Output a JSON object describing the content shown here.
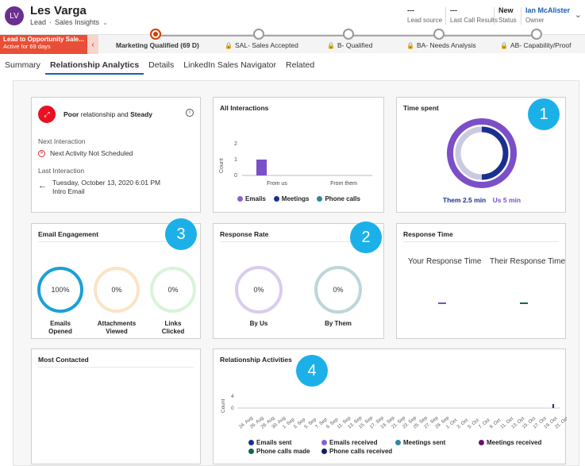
{
  "header": {
    "avatar_initials": "LV",
    "record_name": "Les Varga",
    "record_type": "Lead",
    "form_name": "Sales Insights",
    "fields": [
      {
        "value": "---",
        "label": "Lead source"
      },
      {
        "value": "---",
        "label": "Last Call Results"
      },
      {
        "value": "New",
        "label": "Status"
      },
      {
        "value": "Ian McAlister",
        "label": "Owner"
      }
    ]
  },
  "process": {
    "active_title": "Lead to Opportunity Sale...",
    "active_sub": "Active for 69 days",
    "stages": [
      {
        "label": "Marketing Qualified  (69 D)",
        "current": true
      },
      {
        "label": "SAL- Sales Accepted",
        "current": false
      },
      {
        "label": "B- Qualified",
        "current": false
      },
      {
        "label": "BA- Needs Analysis",
        "current": false
      },
      {
        "label": "AB- Capability/Proof",
        "current": false
      }
    ]
  },
  "tabs": [
    "Summary",
    "Relationship Analytics",
    "Details",
    "LinkedIn Sales Navigator",
    "Related"
  ],
  "active_tab": "Relationship Analytics",
  "health": {
    "prefix": "Poor",
    "middle": " relationship and ",
    "suffix": "Steady",
    "next_label": "Next Interaction",
    "next_value": "Next Activity Not Scheduled",
    "last_label": "Last Interaction",
    "last_date": "Tuesday, October 13, 2020 6:01 PM",
    "last_subject": "Intro Email"
  },
  "all_interactions": {
    "title": "All Interactions",
    "ylabel": "Count",
    "yticks": [
      "2",
      "1",
      "0"
    ],
    "categories": [
      "From us",
      "From them"
    ],
    "legend": [
      "Emails",
      "Meetings",
      "Phone calls"
    ]
  },
  "time_spent": {
    "title": "Time spent",
    "them": "Them 2.5 min",
    "us": "Us 5 min",
    "values": {
      "them_min": 2.5,
      "us_min": 5
    }
  },
  "email_engagement": {
    "title": "Email Engagement",
    "rings": [
      {
        "value": "100%",
        "caption": "Emails Opened",
        "color": "#1aa0d8"
      },
      {
        "value": "0%",
        "caption": "Attachments Viewed",
        "color": "#fbe3c4"
      },
      {
        "value": "0%",
        "caption": "Links Clicked",
        "color": "#d9f3d9"
      }
    ]
  },
  "response_rate": {
    "title": "Response Rate",
    "rings": [
      {
        "value": "0%",
        "caption": "By Us",
        "color": "#d9ccee"
      },
      {
        "value": "0%",
        "caption": "By Them",
        "color": "#bcd6d9"
      }
    ]
  },
  "response_time": {
    "title": "Response Time",
    "yours": "Your Response Time",
    "theirs": "Their Response Time"
  },
  "most_contacted": {
    "title": "Most Contacted"
  },
  "activities": {
    "title": "Relationship Activities",
    "ylabel": "Count",
    "yticks": [
      "4",
      "0"
    ],
    "dates": [
      "24. Aug",
      "26. Aug",
      "28. Aug",
      "30. Aug",
      "1. Sep",
      "3. Sep",
      "5. Sep",
      "7. Sep",
      "9. Sep",
      "11. Sep",
      "13. Sep",
      "15. Sep",
      "17. Sep",
      "19. Sep",
      "21. Sep",
      "23. Sep",
      "25. Sep",
      "27. Sep",
      "29. Sep",
      "1. Oct",
      "3. Oct",
      "5. Oct",
      "7. Oct",
      "9. Oct",
      "11. Oct",
      "13. Oct",
      "15. Oct",
      "17. Oct",
      "19. Oct",
      "21. Oct"
    ],
    "legend": [
      {
        "label": "Emails sent",
        "color": "#1b2f8f"
      },
      {
        "label": "Emails received",
        "color": "#8b5fd1"
      },
      {
        "label": "Meetings sent",
        "color": "#2b8a9a"
      },
      {
        "label": "Meetings received",
        "color": "#6a0f6f"
      },
      {
        "label": "Phone calls made",
        "color": "#0e6a4a"
      },
      {
        "label": "Phone calls received",
        "color": "#0b1e6b"
      }
    ]
  },
  "badges": [
    "1",
    "2",
    "3",
    "4"
  ],
  "chart_data": [
    {
      "type": "bar",
      "title": "All Interactions",
      "ylabel": "Count",
      "categories": [
        "From us",
        "From them"
      ],
      "ylim": [
        0,
        2
      ],
      "series": [
        {
          "name": "Emails",
          "values": [
            1,
            0
          ]
        },
        {
          "name": "Meetings",
          "values": [
            0,
            0
          ]
        },
        {
          "name": "Phone calls",
          "values": [
            0,
            0
          ]
        }
      ]
    },
    {
      "type": "pie",
      "title": "Time spent",
      "series": [
        {
          "name": "Them",
          "values": [
            2.5
          ]
        },
        {
          "name": "Us",
          "values": [
            5
          ]
        }
      ]
    }
  ]
}
